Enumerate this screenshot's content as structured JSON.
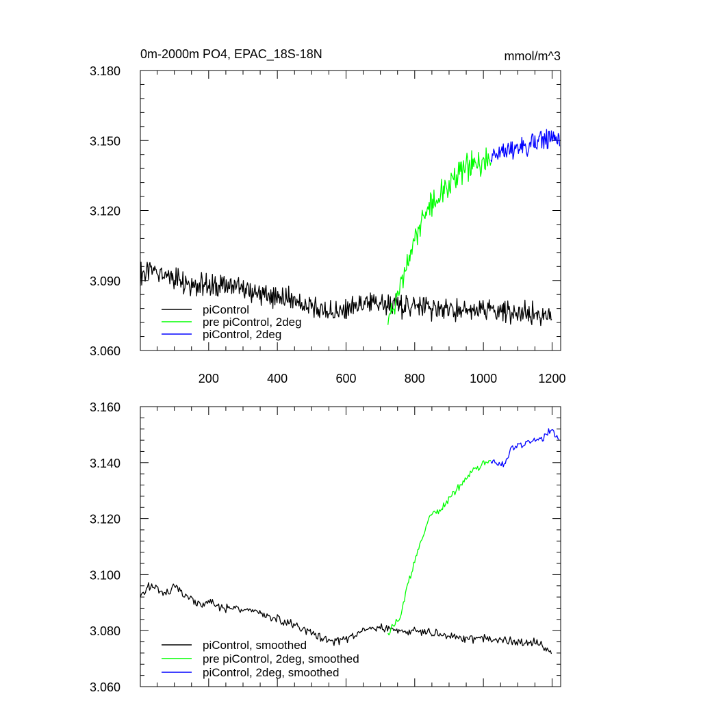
{
  "chart_data": [
    {
      "type": "line",
      "title": "0m-2000m PO4, EPAC_18S-18N",
      "units": "mmol/m^3",
      "xlim": [
        1,
        1225
      ],
      "ylim": [
        3.06,
        3.18
      ],
      "xticks": [
        200,
        400,
        600,
        800,
        1000,
        1200
      ],
      "xtick_labels": [
        "200",
        "400",
        "600",
        "800",
        "1000",
        "1200"
      ],
      "yticks": [
        3.06,
        3.09,
        3.12,
        3.15,
        3.18
      ],
      "ytick_labels": [
        "3.060",
        "3.090",
        "3.120",
        "3.150",
        "3.180"
      ],
      "legend_position": "bottom-left",
      "series": [
        {
          "name": "piControl",
          "color": "#000000",
          "x": [
            1,
            25,
            50,
            75,
            100,
            125,
            150,
            175,
            200,
            250,
            300,
            350,
            400,
            450,
            500,
            550,
            600,
            650,
            700,
            750,
            800,
            850,
            900,
            950,
            1000,
            1050,
            1100,
            1150,
            1200
          ],
          "y": [
            3.093,
            3.095,
            3.094,
            3.092,
            3.091,
            3.09,
            3.089,
            3.088,
            3.088,
            3.087,
            3.086,
            3.084,
            3.083,
            3.081,
            3.079,
            3.077,
            3.077,
            3.079,
            3.08,
            3.079,
            3.079,
            3.078,
            3.077,
            3.077,
            3.077,
            3.077,
            3.076,
            3.076,
            3.073
          ]
        },
        {
          "name": "pre piControl, 2deg",
          "color": "#00ff00",
          "x": [
            722,
            740,
            760,
            780,
            800,
            820,
            840,
            860,
            880,
            900,
            920,
            940,
            960,
            980,
            1000,
            1022
          ],
          "y": [
            3.074,
            3.079,
            3.087,
            3.098,
            3.108,
            3.115,
            3.121,
            3.124,
            3.128,
            3.131,
            3.134,
            3.137,
            3.139,
            3.14,
            3.142,
            3.143
          ]
        },
        {
          "name": "piControl, 2deg",
          "color": "#0000ff",
          "x": [
            1022,
            1050,
            1075,
            1100,
            1125,
            1150,
            1175,
            1200,
            1222
          ],
          "y": [
            3.143,
            3.143,
            3.146,
            3.147,
            3.147,
            3.148,
            3.15,
            3.151,
            3.15
          ]
        }
      ]
    },
    {
      "type": "line",
      "xlim": [
        1,
        1225
      ],
      "ylim": [
        3.06,
        3.16
      ],
      "xticks": [
        200,
        400,
        600,
        800,
        1000,
        1200
      ],
      "yticks": [
        3.06,
        3.08,
        3.1,
        3.12,
        3.14,
        3.16
      ],
      "ytick_labels": [
        "3.060",
        "3.080",
        "3.100",
        "3.120",
        "3.140",
        "3.160"
      ],
      "legend_position": "bottom-left",
      "series": [
        {
          "name": "piControl, smoothed",
          "color": "#000000",
          "x": [
            1,
            25,
            50,
            75,
            100,
            125,
            150,
            175,
            200,
            250,
            300,
            350,
            400,
            450,
            500,
            550,
            600,
            650,
            700,
            750,
            800,
            850,
            900,
            950,
            1000,
            1050,
            1100,
            1150,
            1200
          ],
          "y": [
            3.092,
            3.096,
            3.095,
            3.093,
            3.096,
            3.093,
            3.091,
            3.089,
            3.09,
            3.088,
            3.088,
            3.086,
            3.084,
            3.082,
            3.079,
            3.076,
            3.077,
            3.08,
            3.081,
            3.08,
            3.08,
            3.079,
            3.078,
            3.077,
            3.077,
            3.077,
            3.076,
            3.076,
            3.072
          ]
        },
        {
          "name": "pre piControl, 2deg, smoothed",
          "color": "#00ff00",
          "x": [
            722,
            740,
            760,
            780,
            800,
            820,
            840,
            860,
            880,
            900,
            920,
            940,
            960,
            980,
            1000,
            1022
          ],
          "y": [
            3.079,
            3.082,
            3.085,
            3.097,
            3.105,
            3.112,
            3.12,
            3.122,
            3.124,
            3.127,
            3.13,
            3.133,
            3.136,
            3.138,
            3.14,
            3.141
          ]
        },
        {
          "name": "piControl, 2deg, smoothed",
          "color": "#0000ff",
          "x": [
            1022,
            1040,
            1060,
            1080,
            1100,
            1125,
            1150,
            1175,
            1200,
            1222
          ],
          "y": [
            3.141,
            3.14,
            3.139,
            3.145,
            3.146,
            3.147,
            3.148,
            3.149,
            3.152,
            3.147
          ]
        }
      ]
    }
  ]
}
